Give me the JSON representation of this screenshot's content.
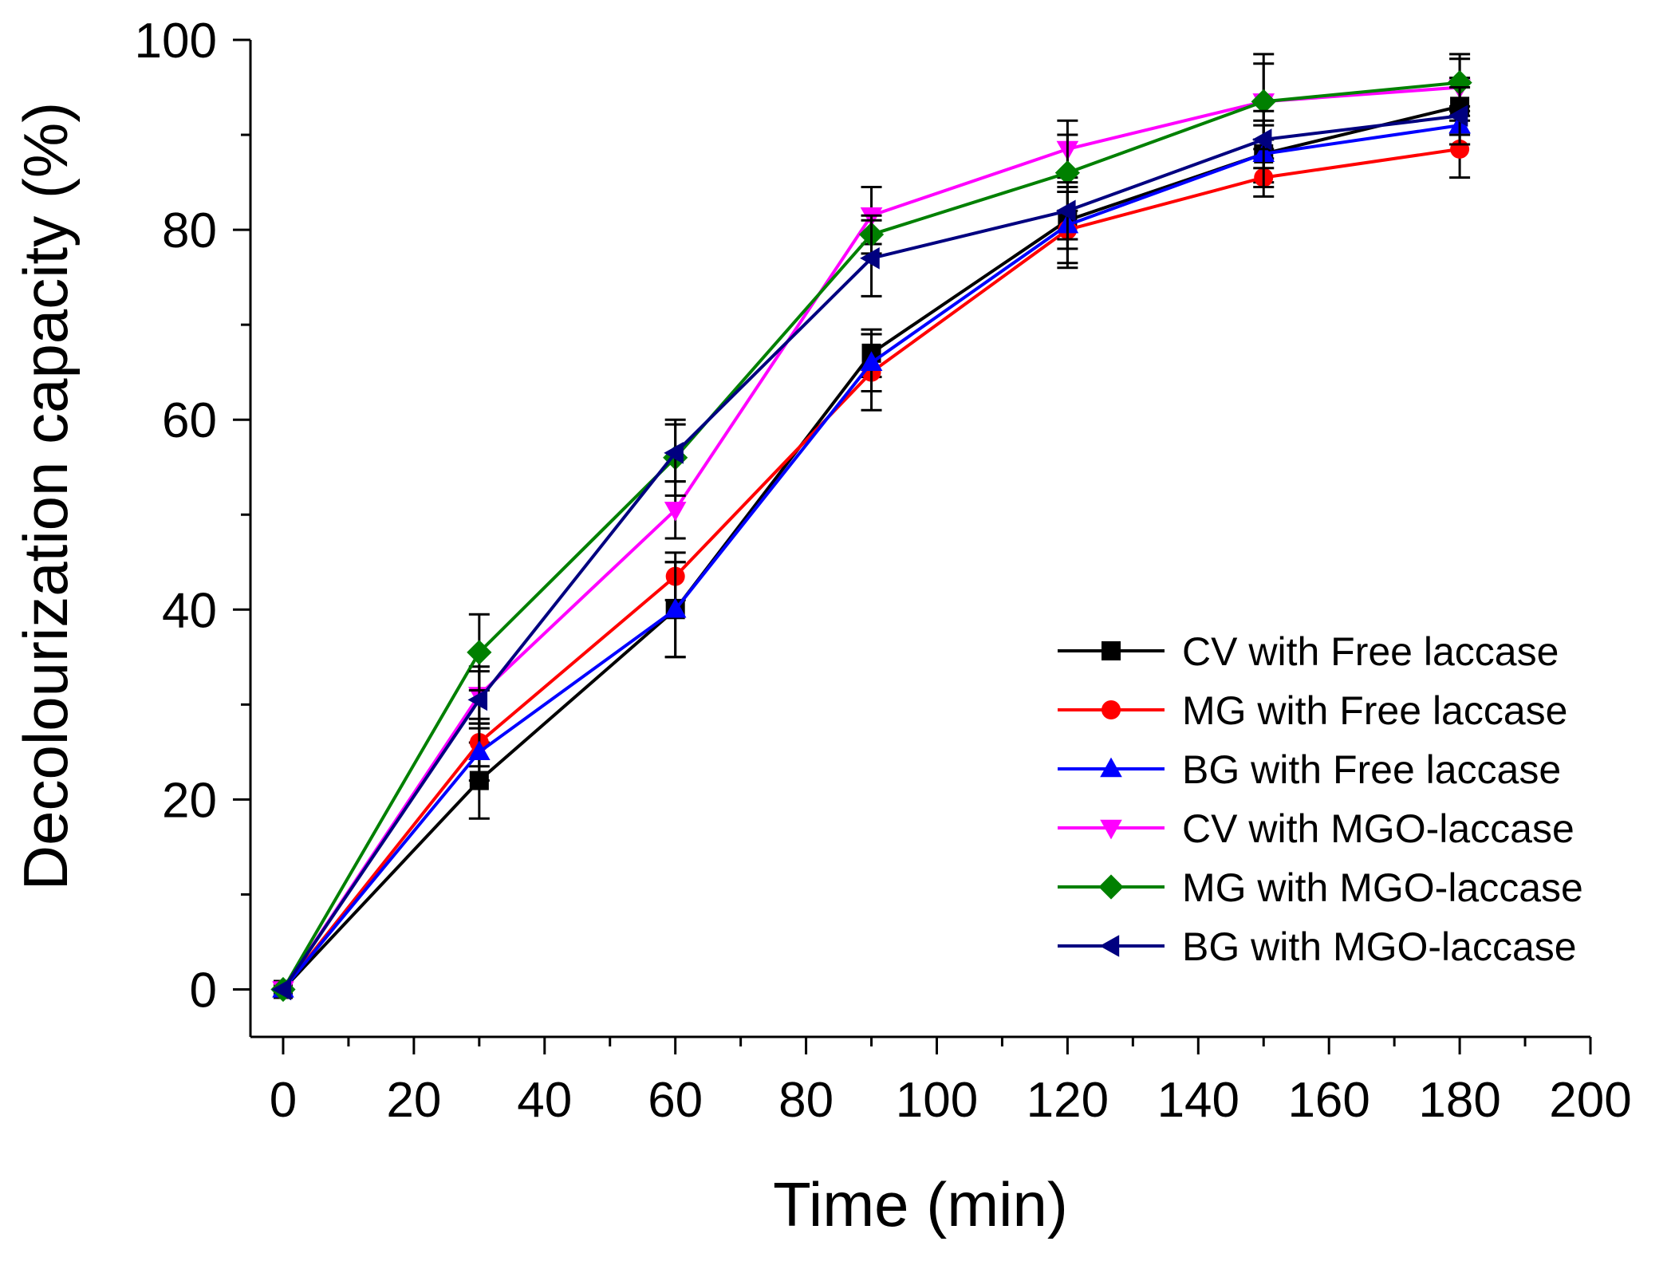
{
  "chart_data": {
    "type": "line",
    "title": "",
    "xlabel": "Time (min)",
    "ylabel": "Decolourization capacity (%)",
    "xlim": [
      -5,
      200
    ],
    "ylim": [
      -5,
      100
    ],
    "x_ticks": [
      0,
      20,
      40,
      60,
      80,
      100,
      120,
      140,
      160,
      180,
      200
    ],
    "y_ticks": [
      0,
      20,
      40,
      60,
      80,
      100
    ],
    "grid": false,
    "legend_position": "bottom-right",
    "x": [
      0,
      30,
      60,
      90,
      120,
      150,
      180
    ],
    "series": [
      {
        "name": "CV with Free laccase",
        "color": "#000000",
        "marker": "square",
        "values": [
          0,
          22,
          40,
          67,
          81,
          88,
          93
        ],
        "errors": [
          0,
          4,
          5,
          2.5,
          3,
          3,
          3
        ]
      },
      {
        "name": "MG with Free laccase",
        "color": "#ff0000",
        "marker": "circle",
        "values": [
          0,
          26,
          43.5,
          65,
          80,
          85.5,
          88.5
        ],
        "errors": [
          0,
          2.5,
          2.5,
          4,
          4,
          2,
          3
        ]
      },
      {
        "name": "BG with Free laccase",
        "color": "#0000ff",
        "marker": "triangle-up",
        "values": [
          0,
          25,
          40,
          66,
          80.5,
          88,
          91
        ],
        "errors": [
          0,
          3,
          5,
          3,
          4,
          3.5,
          2
        ]
      },
      {
        "name": "CV with MGO-laccase",
        "color": "#ff00ff",
        "marker": "triangle-down",
        "values": [
          0,
          31,
          50.5,
          81.5,
          88.5,
          93.5,
          95
        ],
        "errors": [
          0,
          3,
          3,
          3,
          3,
          5,
          3
        ]
      },
      {
        "name": "MG with MGO-laccase",
        "color": "#008000",
        "marker": "diamond",
        "values": [
          0,
          35.5,
          56,
          79.5,
          86,
          93.5,
          95.5
        ],
        "errors": [
          0,
          4,
          4,
          2,
          4,
          4,
          3
        ]
      },
      {
        "name": "BG with MGO-laccase",
        "color": "#000080",
        "marker": "triangle-left",
        "values": [
          0,
          30.5,
          56.5,
          77,
          82,
          89.5,
          92
        ],
        "errors": [
          0,
          3,
          3,
          4,
          3,
          3,
          3
        ]
      }
    ]
  }
}
